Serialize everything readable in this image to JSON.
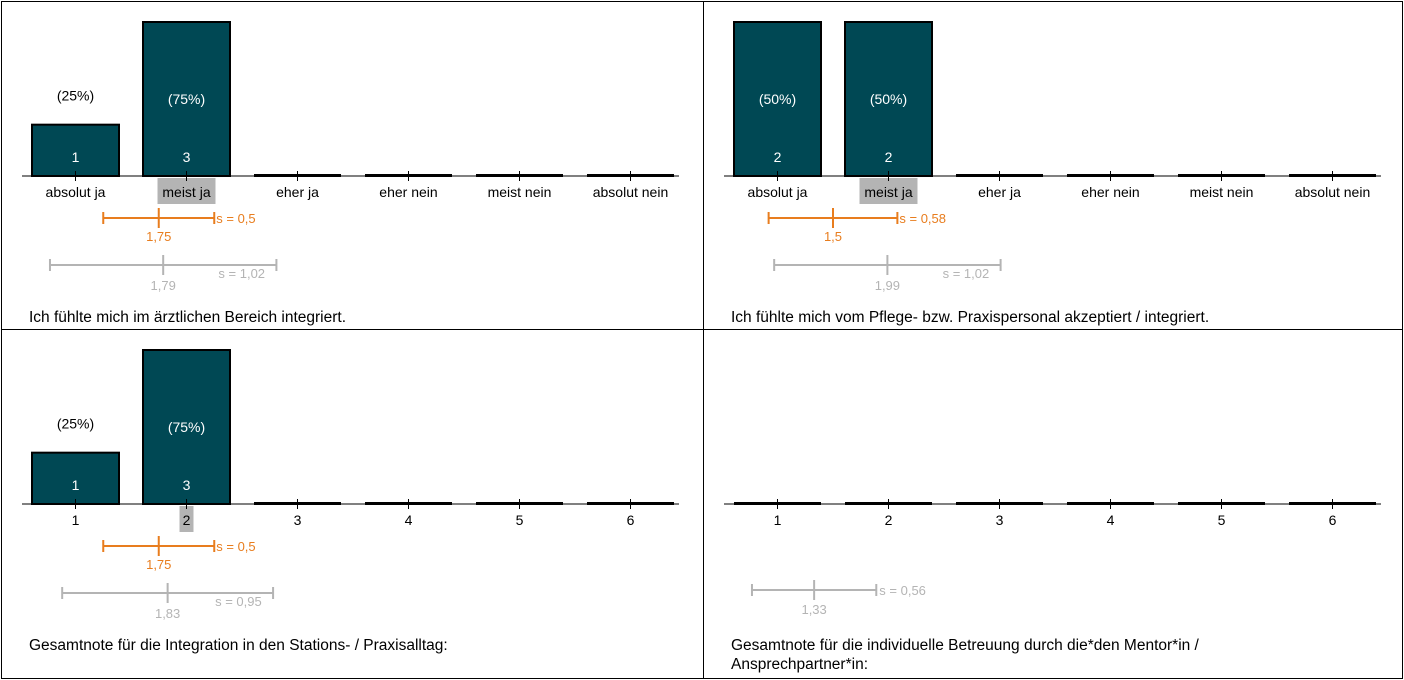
{
  "colors": {
    "bar": "#004854",
    "bar_text": "#ffffff",
    "own": "#e87d1e",
    "ref": "#b4b4b4",
    "highlight": "#b4b4b4",
    "axis": "#000000"
  },
  "chart_data": [
    {
      "type": "bar",
      "categories": [
        "absolut ja",
        "meist ja",
        "eher ja",
        "eher nein",
        "meist nein",
        "absolut nein"
      ],
      "values": [
        1,
        3,
        0,
        0,
        0,
        0
      ],
      "percent_labels": [
        "(25%)",
        "(75%)",
        "",
        "",
        "",
        ""
      ],
      "count_labels": [
        "1",
        "3",
        "",
        "",
        "",
        ""
      ],
      "highlight_category": "meist ja",
      "ylim": [
        0,
        3
      ],
      "own_stat": {
        "mean": 1.75,
        "sd": 0.5,
        "mean_label": "1,75",
        "sd_label": "s = 0,5"
      },
      "ref_stat": {
        "mean": 1.79,
        "sd": 1.02,
        "mean_label": "1,79",
        "sd_label": "s = 1,02"
      },
      "question": "Ich fühlte mich im ärztlichen Bereich integriert."
    },
    {
      "type": "bar",
      "categories": [
        "absolut ja",
        "meist ja",
        "eher ja",
        "eher nein",
        "meist nein",
        "absolut nein"
      ],
      "values": [
        2,
        2,
        0,
        0,
        0,
        0
      ],
      "percent_labels": [
        "(50%)",
        "(50%)",
        "",
        "",
        "",
        ""
      ],
      "count_labels": [
        "2",
        "2",
        "",
        "",
        "",
        ""
      ],
      "highlight_category": "meist ja",
      "ylim": [
        0,
        2
      ],
      "own_stat": {
        "mean": 1.5,
        "sd": 0.58,
        "mean_label": "1,5",
        "sd_label": "s = 0,58"
      },
      "ref_stat": {
        "mean": 1.99,
        "sd": 1.02,
        "mean_label": "1,99",
        "sd_label": "s = 1,02"
      },
      "question": "Ich fühlte mich vom Pflege- bzw. Praxispersonal akzeptiert / integriert."
    },
    {
      "type": "bar",
      "categories": [
        "1",
        "2",
        "3",
        "4",
        "5",
        "6"
      ],
      "values": [
        1,
        3,
        0,
        0,
        0,
        0
      ],
      "percent_labels": [
        "(25%)",
        "(75%)",
        "",
        "",
        "",
        ""
      ],
      "count_labels": [
        "1",
        "3",
        "",
        "",
        "",
        ""
      ],
      "highlight_category": "2",
      "ylim": [
        0,
        3
      ],
      "own_stat": {
        "mean": 1.75,
        "sd": 0.5,
        "mean_label": "1,75",
        "sd_label": "s = 0,5"
      },
      "ref_stat": {
        "mean": 1.83,
        "sd": 0.95,
        "mean_label": "1,83",
        "sd_label": "s = 0,95"
      },
      "question": "Gesamtnote für die Integration in den Stations- / Praxisalltag:"
    },
    {
      "type": "bar",
      "categories": [
        "1",
        "2",
        "3",
        "4",
        "5",
        "6"
      ],
      "values": [
        0,
        0,
        0,
        0,
        0,
        0
      ],
      "percent_labels": [
        "",
        "",
        "",
        "",
        "",
        ""
      ],
      "count_labels": [
        "",
        "",
        "",
        "",
        "",
        ""
      ],
      "highlight_category": "",
      "ylim": [
        0,
        3
      ],
      "own_stat": null,
      "ref_stat": {
        "mean": 1.33,
        "sd": 0.56,
        "mean_label": "1,33",
        "sd_label": "s = 0,56"
      },
      "question": "Gesamtnote für die individuelle Betreuung durch die*den Mentor*in / Ansprechpartner*in:"
    }
  ]
}
